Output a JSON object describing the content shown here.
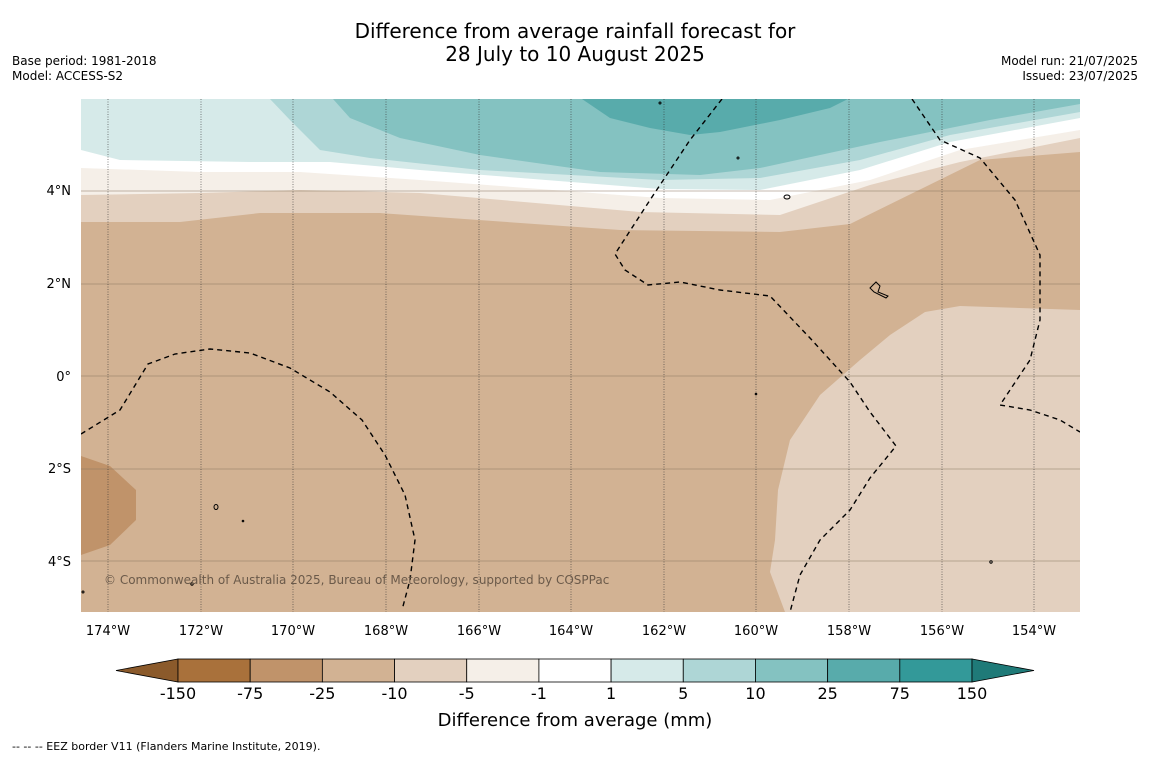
{
  "title_line1": "Difference from average rainfall forecast for",
  "title_line2": "28 July to 10 August 2025",
  "meta_left": {
    "base_period": "Base period: 1981-2018",
    "model": "Model: ACCESS-S2"
  },
  "meta_right": {
    "model_run": "Model run: 21/07/2025",
    "issued": "Issued: 23/07/2025"
  },
  "map": {
    "lat_labels": [
      "4°N",
      "2°N",
      "0°",
      "2°S",
      "4°S"
    ],
    "lon_labels": [
      "174°W",
      "172°W",
      "170°W",
      "168°W",
      "166°W",
      "164°W",
      "162°W",
      "160°W",
      "158°W",
      "156°W",
      "154°W"
    ],
    "copyright": "© Commonwealth of Australia 2025, Bureau of Meteorology, supported by COSPPac"
  },
  "colorbar": {
    "title": "Difference from average (mm)",
    "labels": [
      "-150",
      "-75",
      "-25",
      "-10",
      "-5",
      "-1",
      "1",
      "5",
      "10",
      "25",
      "75",
      "150"
    ],
    "colors": [
      "#8b5a2b",
      "#a9713b",
      "#c0936a",
      "#d2b293",
      "#e3d0bf",
      "#f5efe8",
      "#ffffff",
      "#d6eae9",
      "#aed6d6",
      "#84c2c1",
      "#58abab",
      "#339999",
      "#1f7a78"
    ]
  },
  "footer": "--  --  -- EEZ border V11 (Flanders Marine Institute, 2019)."
}
